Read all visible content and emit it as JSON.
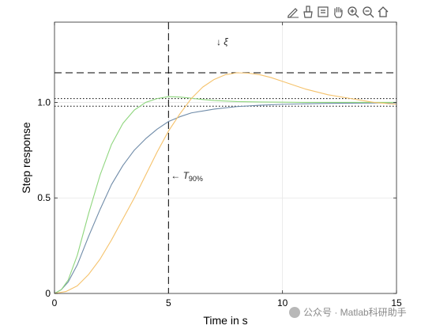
{
  "toolbar": {
    "icons": [
      "edit-icon",
      "brush-icon",
      "data-tip-icon",
      "pan-hand-icon",
      "zoom-in-icon",
      "zoom-out-icon",
      "home-icon"
    ]
  },
  "watermark": {
    "text": "公众号 · Matlab科研助手"
  },
  "chart_data": {
    "type": "line",
    "title": "",
    "xlabel": "Time in s",
    "ylabel": "Step response",
    "xlim": [
      0,
      15
    ],
    "ylim": [
      0,
      1.42
    ],
    "xticks": [
      0,
      5,
      10,
      15
    ],
    "xtick_labels": [
      "0",
      "5",
      "10",
      "15"
    ],
    "yticks": [
      0,
      0.5,
      1.0
    ],
    "ytick_labels": [
      "0",
      "0.5",
      "1.0"
    ],
    "grid": true,
    "series": [
      {
        "color": "#6f8ba8",
        "x": [
          0,
          0.3,
          0.6,
          1,
          1.5,
          2,
          2.5,
          3,
          3.5,
          4,
          4.5,
          5,
          5.5,
          6,
          7,
          8,
          9,
          10,
          11,
          12,
          13,
          14,
          15
        ],
        "y": [
          0,
          0.02,
          0.06,
          0.15,
          0.3,
          0.44,
          0.57,
          0.67,
          0.75,
          0.81,
          0.86,
          0.9,
          0.925,
          0.945,
          0.965,
          0.978,
          0.985,
          0.99,
          0.993,
          0.995,
          0.996,
          0.997,
          0.998
        ]
      },
      {
        "color": "#8fd67e",
        "x": [
          0,
          0.3,
          0.6,
          1,
          1.5,
          2,
          2.5,
          3,
          3.5,
          4,
          4.5,
          5,
          5.5,
          6,
          6.5,
          7,
          8,
          9,
          10,
          11,
          12,
          13,
          14,
          15
        ],
        "y": [
          0,
          0.02,
          0.07,
          0.2,
          0.42,
          0.62,
          0.78,
          0.89,
          0.96,
          1.0,
          1.02,
          1.03,
          1.028,
          1.022,
          1.015,
          1.01,
          1.004,
          1.002,
          1.001,
          1.0,
          1.0,
          1.0,
          1.0,
          1.0
        ]
      },
      {
        "color": "#f5c26b",
        "x": [
          0,
          0.5,
          1,
          1.5,
          2,
          2.5,
          3,
          3.5,
          4,
          4.5,
          5,
          5.5,
          6,
          6.5,
          7,
          7.5,
          8,
          8.5,
          9,
          9.5,
          10,
          11,
          12,
          13,
          14,
          15
        ],
        "y": [
          0,
          0.01,
          0.04,
          0.1,
          0.18,
          0.28,
          0.39,
          0.5,
          0.62,
          0.74,
          0.85,
          0.94,
          1.02,
          1.08,
          1.12,
          1.145,
          1.155,
          1.153,
          1.145,
          1.13,
          1.11,
          1.07,
          1.04,
          1.02,
          1.0,
          0.99
        ]
      }
    ],
    "reference_lines": [
      {
        "orientation": "horizontal",
        "value": 1.155,
        "style": "dashed",
        "color": "#000000"
      },
      {
        "orientation": "horizontal",
        "value": 1.02,
        "style": "dotted",
        "color": "#000000"
      },
      {
        "orientation": "horizontal",
        "value": 0.98,
        "style": "dotted",
        "color": "#000000"
      },
      {
        "orientation": "vertical",
        "value": 5,
        "style": "dashed",
        "color": "#000000"
      }
    ],
    "annotations": [
      {
        "arrow": "↓",
        "symbol": "ξ",
        "sub": "",
        "x": 7.1,
        "y": 1.3
      },
      {
        "arrow": "←",
        "symbol": "T",
        "sub": "90%",
        "x": 5.1,
        "y": 0.6
      }
    ]
  }
}
